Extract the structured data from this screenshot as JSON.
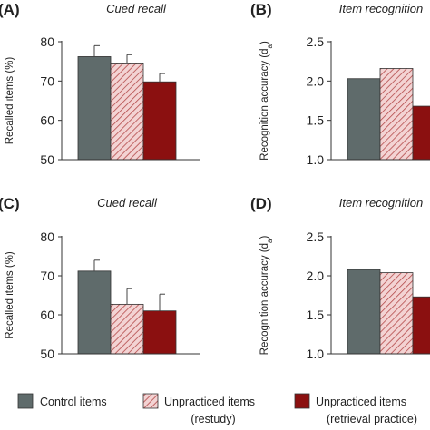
{
  "colors": {
    "control": "#5f6b6b",
    "restudy_fill": "#f3d3d3",
    "restudy_hatch": "#b34a4a",
    "retrieval": "#8b1010",
    "axis": "#333333",
    "error_bar": "#444444"
  },
  "legend": {
    "placement": "bottom",
    "items": [
      {
        "key": "control",
        "line1": "Control items",
        "line2": ""
      },
      {
        "key": "restudy",
        "line1": "Unpracticed items",
        "line2": "(restudy)"
      },
      {
        "key": "retrieval",
        "line1": "Unpracticed items",
        "line2": "(retrieval practice)"
      }
    ]
  },
  "chart_data": [
    {
      "panel": "(A)",
      "title": "Cued recall",
      "type": "bar",
      "ylabel": "Recalled items (%)",
      "ylim": [
        50,
        80
      ],
      "yticks": [
        "50",
        "60",
        "70",
        "80"
      ],
      "series": [
        {
          "name": "Control items",
          "key": "control",
          "value": 76.2,
          "error": 2.8
        },
        {
          "name": "Unpracticed items (restudy)",
          "key": "restudy",
          "value": 74.6,
          "error": 2.1
        },
        {
          "name": "Unpracticed items (retrieval practice)",
          "key": "retrieval",
          "value": 69.8,
          "error": 2.1
        }
      ]
    },
    {
      "panel": "(B)",
      "title": "Item recognition",
      "type": "bar",
      "ylabel": "Recognition accuracy (da)",
      "ylim": [
        1.0,
        2.5
      ],
      "yticks": [
        "1.0",
        "1.5",
        "2.0",
        "2.5"
      ],
      "series": [
        {
          "name": "Control items",
          "key": "control",
          "value": 2.03
        },
        {
          "name": "Unpracticed items (restudy)",
          "key": "restudy",
          "value": 2.16
        },
        {
          "name": "Unpracticed items (retrieval practice)",
          "key": "retrieval",
          "value": 1.68
        }
      ]
    },
    {
      "panel": "(C)",
      "title": "Cued recall",
      "type": "bar",
      "ylabel": "Recalled items (%)",
      "ylim": [
        50,
        80
      ],
      "yticks": [
        "50",
        "60",
        "70",
        "80"
      ],
      "series": [
        {
          "name": "Control items",
          "key": "control",
          "value": 71.2,
          "error": 2.8
        },
        {
          "name": "Unpracticed items (restudy)",
          "key": "restudy",
          "value": 62.7,
          "error": 4.0
        },
        {
          "name": "Unpracticed items (retrieval practice)",
          "key": "retrieval",
          "value": 61.0,
          "error": 4.3
        }
      ]
    },
    {
      "panel": "(D)",
      "title": "Item recognition",
      "type": "bar",
      "ylabel": "Recognition accuracy (da)",
      "ylim": [
        1.0,
        2.5
      ],
      "yticks": [
        "1.0",
        "1.5",
        "2.0",
        "2.5"
      ],
      "series": [
        {
          "name": "Control items",
          "key": "control",
          "value": 2.08
        },
        {
          "name": "Unpracticed items (restudy)",
          "key": "restudy",
          "value": 2.04
        },
        {
          "name": "Unpracticed items (retrieval practice)",
          "key": "retrieval",
          "value": 1.73
        }
      ]
    }
  ]
}
